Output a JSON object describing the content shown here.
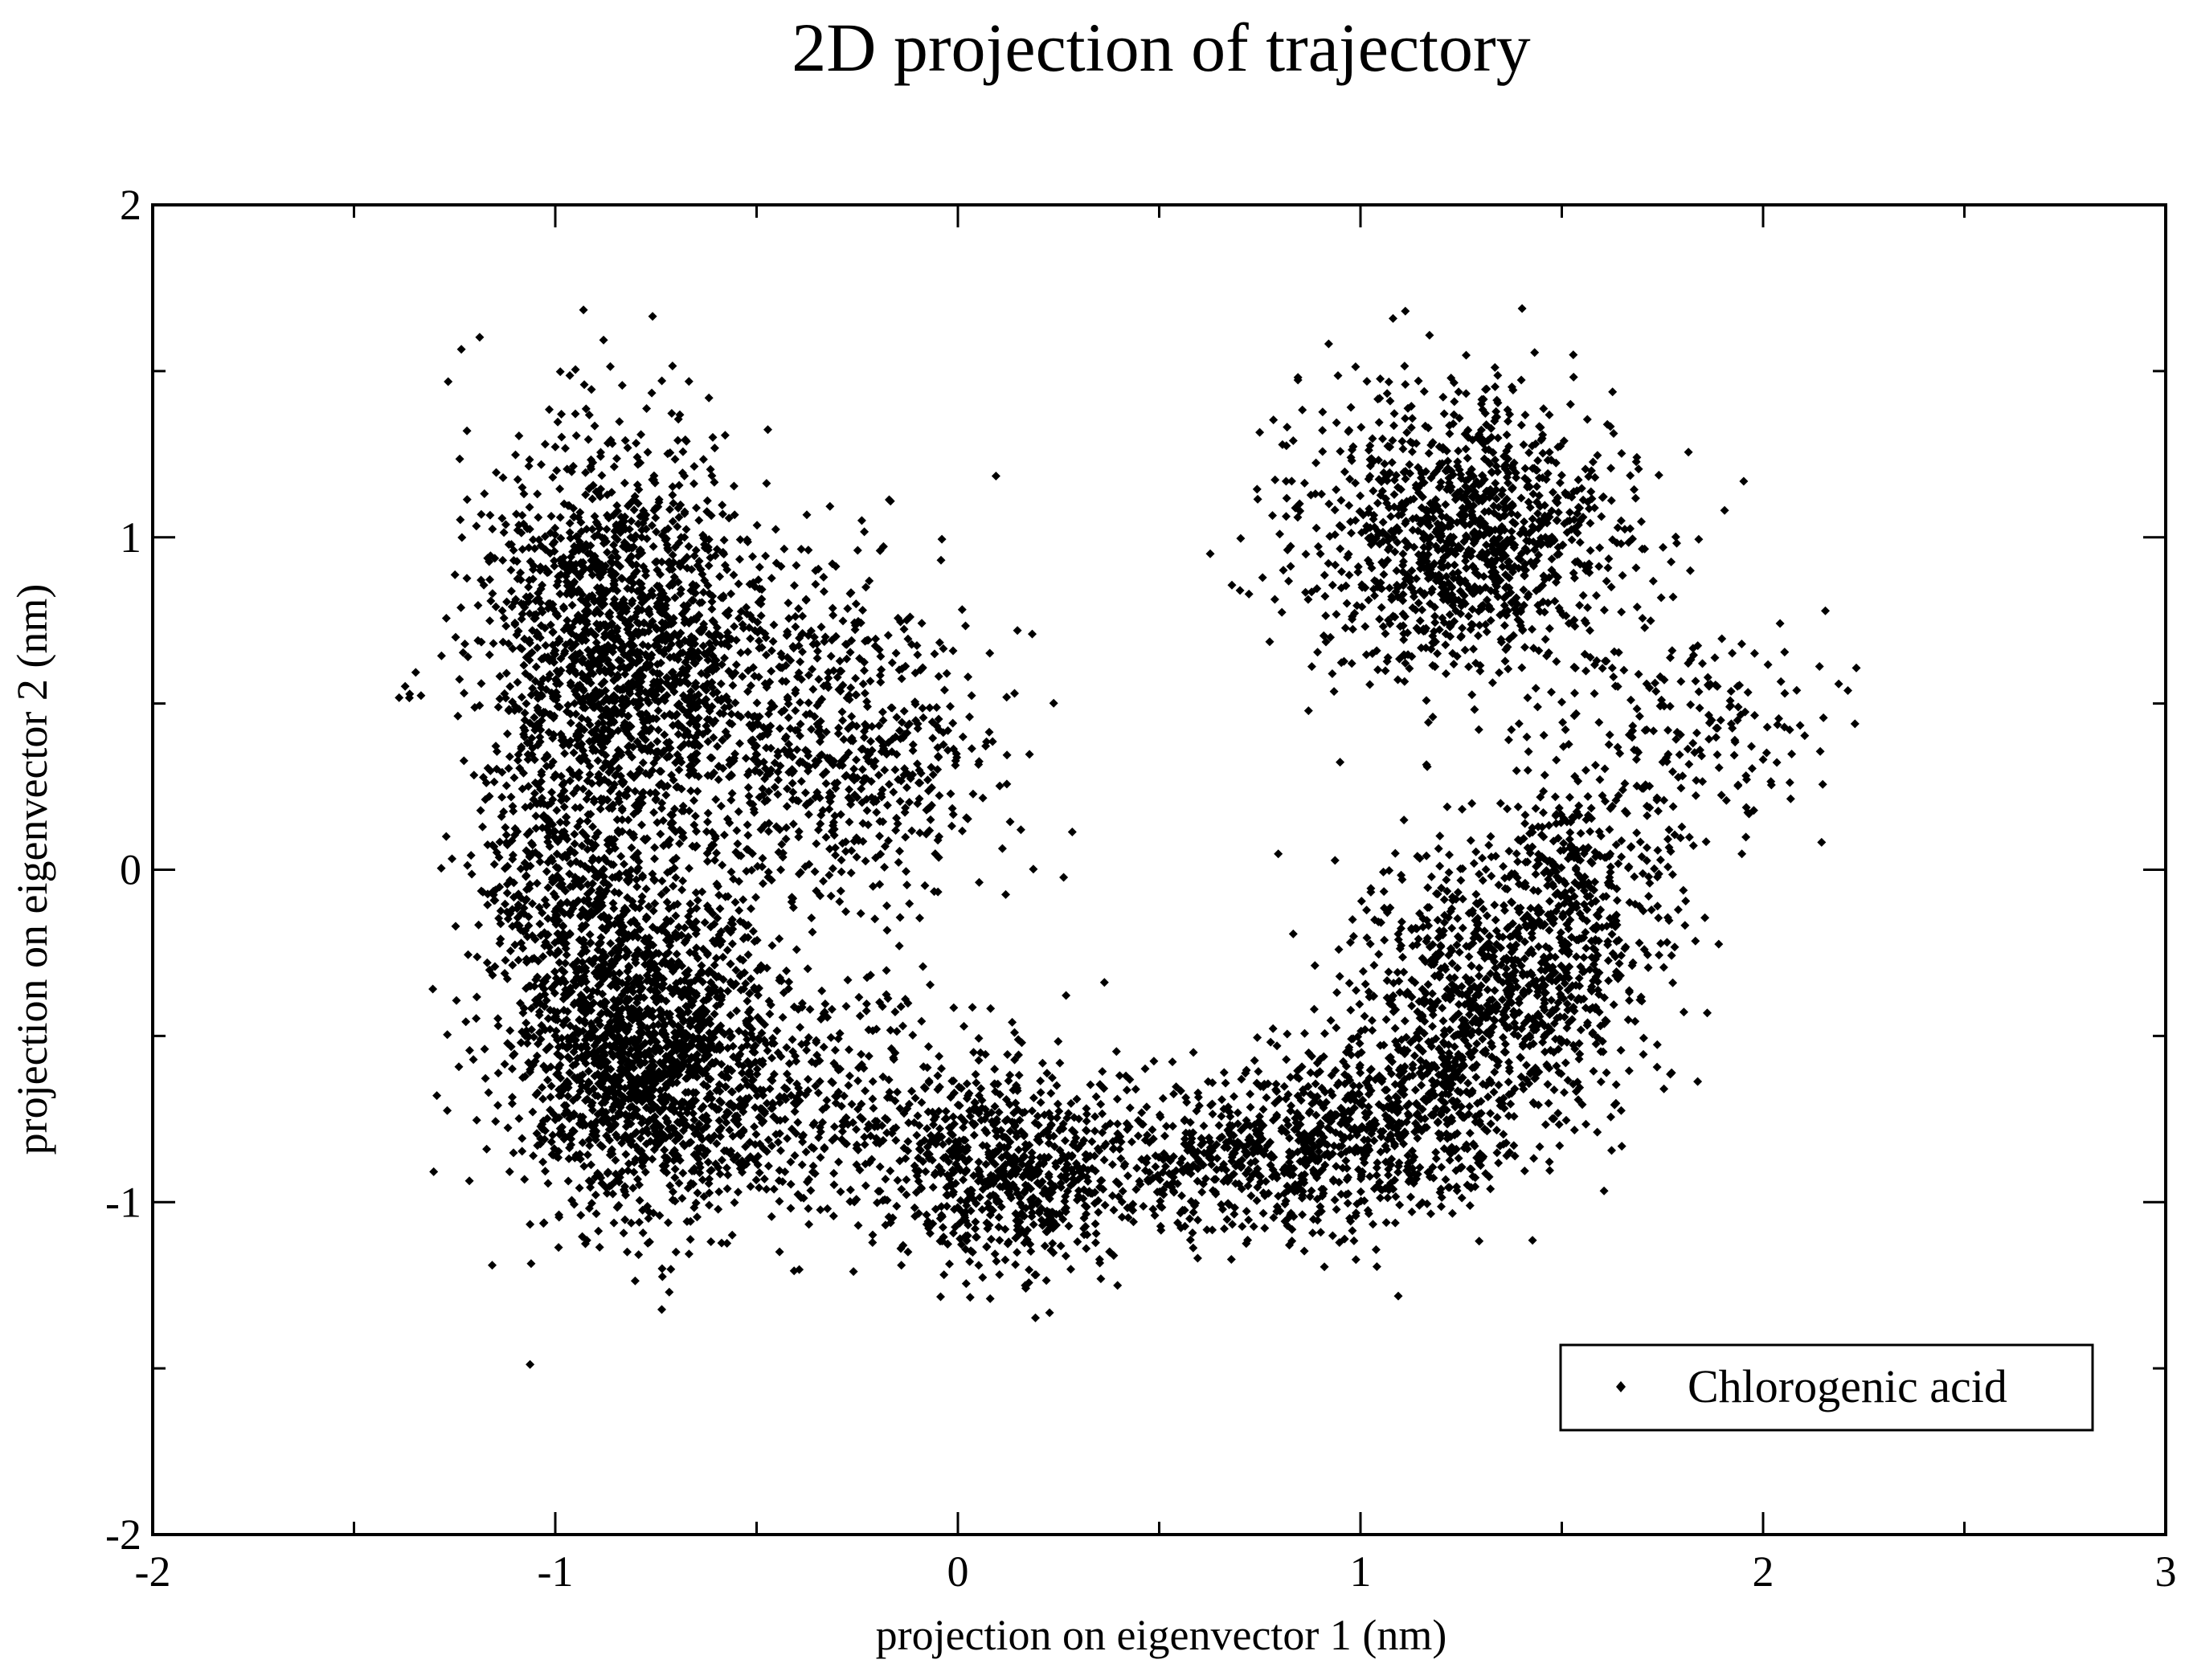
{
  "chart_data": {
    "type": "scatter",
    "title": "2D projection of trajectory",
    "xlabel": "projection on eigenvector 1 (nm)",
    "ylabel": "projection on eigenvector 2 (nm)",
    "xlim": [
      -2,
      3
    ],
    "ylim": [
      -2,
      2
    ],
    "x_ticks": [
      -2,
      -1,
      0,
      1,
      2,
      3
    ],
    "y_ticks": [
      -2,
      -1,
      0,
      1,
      2
    ],
    "x_tick_labels": [
      "-2",
      "-1",
      "0",
      "1",
      "2",
      "3"
    ],
    "y_tick_labels": [
      "-2",
      "-1",
      "0",
      "1",
      "2"
    ],
    "grid": false,
    "legend": {
      "position": "bottom-right",
      "entries": [
        "Chlorogenic acid"
      ]
    },
    "series": [
      {
        "name": "Chlorogenic acid",
        "marker": "diamond",
        "color": "#000000",
        "clusters": [
          {
            "center": [
              -0.85,
              0.65
            ],
            "spread": [
              0.16,
              0.32
            ],
            "count": 1700
          },
          {
            "center": [
              -0.4,
              0.45
            ],
            "spread": [
              0.2,
              0.28
            ],
            "count": 550
          },
          {
            "center": [
              -0.2,
              0.25
            ],
            "spread": [
              0.17,
              0.2
            ],
            "count": 250
          },
          {
            "center": [
              -0.8,
              -0.5
            ],
            "spread": [
              0.16,
              0.26
            ],
            "count": 1700
          },
          {
            "center": [
              -0.4,
              -0.7
            ],
            "spread": [
              0.22,
              0.18
            ],
            "count": 450
          },
          {
            "center": [
              -1.0,
              -0.05
            ],
            "spread": [
              0.12,
              0.2
            ],
            "count": 300
          },
          {
            "center": [
              0.12,
              -0.9
            ],
            "spread": [
              0.16,
              0.16
            ],
            "count": 700
          },
          {
            "center": [
              0.7,
              -0.85
            ],
            "spread": [
              0.2,
              0.13
            ],
            "count": 550
          },
          {
            "center": [
              1.1,
              -0.75
            ],
            "spread": [
              0.18,
              0.15
            ],
            "count": 500
          },
          {
            "center": [
              1.35,
              -0.35
            ],
            "spread": [
              0.18,
              0.2
            ],
            "count": 900
          },
          {
            "center": [
              1.55,
              0.02
            ],
            "spread": [
              0.12,
              0.15
            ],
            "count": 250
          },
          {
            "center": [
              1.25,
              1.0
            ],
            "spread": [
              0.2,
              0.22
            ],
            "count": 1200
          },
          {
            "center": [
              1.85,
              0.45
            ],
            "spread": [
              0.17,
              0.17
            ],
            "count": 180
          }
        ]
      }
    ]
  }
}
